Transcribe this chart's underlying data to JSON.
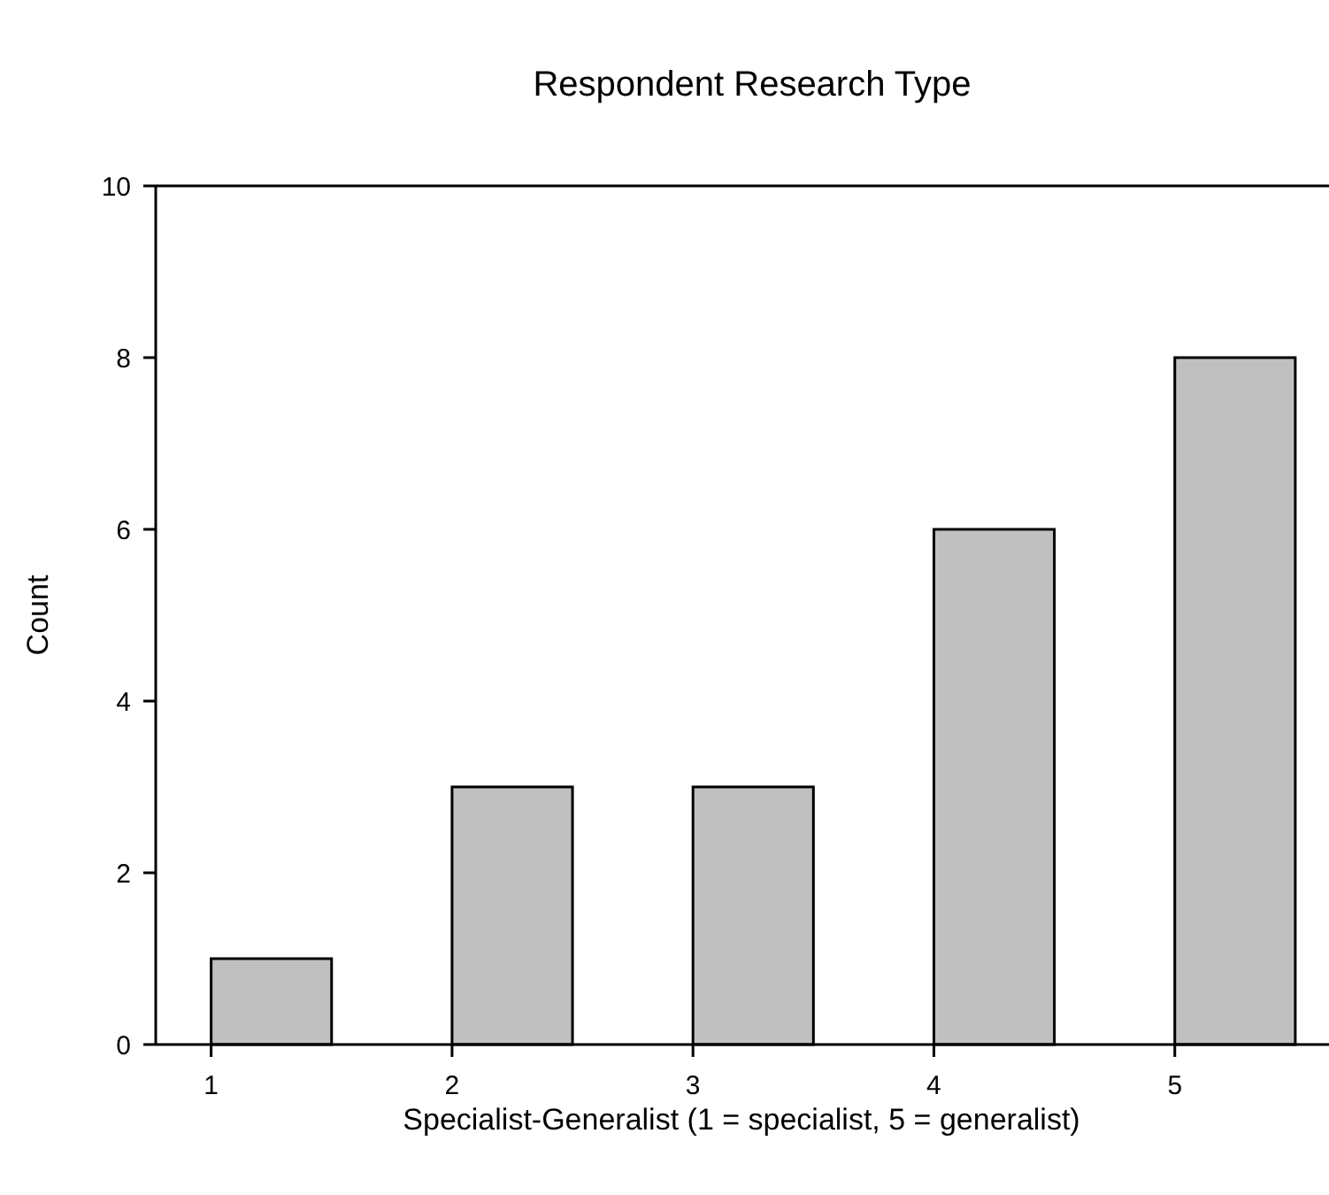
{
  "chart_data": {
    "type": "histogram",
    "title": "Respondent Research Type",
    "xlabel": "Specialist-Generalist (1 = specialist, 5 = generalist)",
    "ylabel": "Count",
    "bins": [
      1,
      1.5,
      2,
      2.5,
      3,
      3.5,
      4,
      4.5,
      5,
      5.5
    ],
    "values": [
      1,
      0,
      3,
      0,
      3,
      0,
      6,
      0,
      8
    ],
    "color": "#c0c0c0",
    "xlim": [
      0.77,
      5.64
    ],
    "xticks": [
      1,
      2,
      3,
      4,
      5
    ],
    "ylim": [
      0,
      10
    ],
    "yticks": [
      0,
      2,
      4,
      6,
      8,
      10
    ],
    "grid": false
  }
}
